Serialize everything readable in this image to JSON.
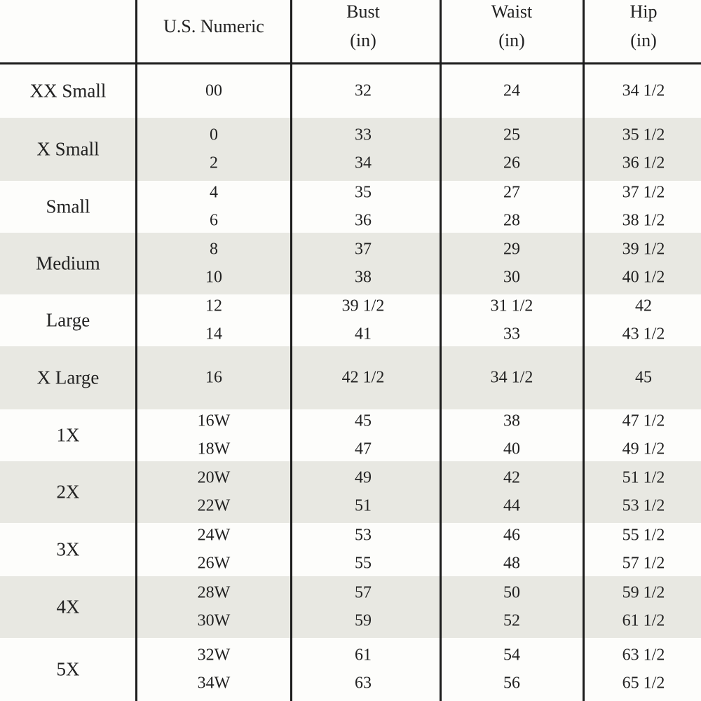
{
  "table": {
    "header": [
      {
        "label": "U.S. Numeric"
      },
      {
        "label": "Bust",
        "unit": "(in)"
      },
      {
        "label": "Waist",
        "unit": "(in)"
      },
      {
        "label": "Hip",
        "unit": "(in)"
      }
    ],
    "rows": [
      {
        "size": "XX Small",
        "numeric": [
          "00"
        ],
        "bust": [
          "32"
        ],
        "waist": [
          "24"
        ],
        "hip": [
          "34 1/2"
        ]
      },
      {
        "size": "X Small",
        "numeric": [
          "0",
          "2"
        ],
        "bust": [
          "33",
          "34"
        ],
        "waist": [
          "25",
          "26"
        ],
        "hip": [
          "35 1/2",
          "36 1/2"
        ]
      },
      {
        "size": "Small",
        "numeric": [
          "4",
          "6"
        ],
        "bust": [
          "35",
          "36"
        ],
        "waist": [
          "27",
          "28"
        ],
        "hip": [
          "37 1/2",
          "38 1/2"
        ]
      },
      {
        "size": "Medium",
        "numeric": [
          "8",
          "10"
        ],
        "bust": [
          "37",
          "38"
        ],
        "waist": [
          "29",
          "30"
        ],
        "hip": [
          "39 1/2",
          "40 1/2"
        ]
      },
      {
        "size": "Large",
        "numeric": [
          "12",
          "14"
        ],
        "bust": [
          "39 1/2",
          "41"
        ],
        "waist": [
          "31 1/2",
          "33"
        ],
        "hip": [
          "42",
          "43 1/2"
        ]
      },
      {
        "size": "X Large",
        "numeric": [
          "16"
        ],
        "bust": [
          "42 1/2"
        ],
        "waist": [
          "34 1/2"
        ],
        "hip": [
          "45"
        ]
      },
      {
        "size": "1X",
        "numeric": [
          "16W",
          "18W"
        ],
        "bust": [
          "45",
          "47"
        ],
        "waist": [
          "38",
          "40"
        ],
        "hip": [
          "47 1/2",
          "49 1/2"
        ]
      },
      {
        "size": "2X",
        "numeric": [
          "20W",
          "22W"
        ],
        "bust": [
          "49",
          "51"
        ],
        "waist": [
          "42",
          "44"
        ],
        "hip": [
          "51 1/2",
          "53 1/2"
        ]
      },
      {
        "size": "3X",
        "numeric": [
          "24W",
          "26W"
        ],
        "bust": [
          "53",
          "55"
        ],
        "waist": [
          "46",
          "48"
        ],
        "hip": [
          "55 1/2",
          "57 1/2"
        ]
      },
      {
        "size": "4X",
        "numeric": [
          "28W",
          "30W"
        ],
        "bust": [
          "57",
          "59"
        ],
        "waist": [
          "50",
          "52"
        ],
        "hip": [
          "59 1/2",
          "61 1/2"
        ]
      },
      {
        "size": "5X",
        "numeric": [
          "32W",
          "34W"
        ],
        "bust": [
          "61",
          "63"
        ],
        "waist": [
          "54",
          "56"
        ],
        "hip": [
          "63 1/2",
          "65 1/2"
        ]
      }
    ]
  }
}
